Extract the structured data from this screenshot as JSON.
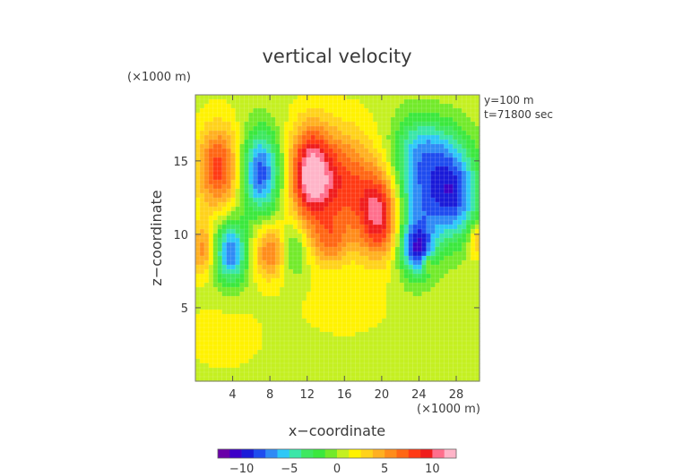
{
  "chart_data": {
    "type": "heatmap",
    "title": "vertical velocity",
    "xlabel": "x−coordinate",
    "ylabel": "z−coordinate",
    "x_unit": "(×1000 m)",
    "y_unit": "(×1000 m)",
    "info_lines": [
      "y=100 m",
      "t=71800 sec"
    ],
    "xlim": [
      0,
      30.5
    ],
    "ylim": [
      0,
      19.5
    ],
    "x_ticks": [
      4,
      8,
      12,
      16,
      20,
      24,
      28
    ],
    "x_tick_labels": [
      "4",
      "8",
      "12",
      "16",
      "20",
      "24",
      "28"
    ],
    "y_ticks": [
      5,
      10,
      15
    ],
    "y_tick_labels": [
      "5",
      "10",
      "15"
    ],
    "grid": true,
    "background_value": 0.8,
    "features": [
      {
        "x": 2.5,
        "z": 14.5,
        "sx": 1.6,
        "sz": 2.0,
        "value": 7.5
      },
      {
        "x": 0.8,
        "z": 9.0,
        "sx": 1.0,
        "sz": 1.2,
        "value": 5.0
      },
      {
        "x": 3.8,
        "z": 8.8,
        "sx": 1.3,
        "sz": 1.5,
        "value": -8.5
      },
      {
        "x": 7.0,
        "z": 14.2,
        "sx": 1.5,
        "sz": 2.0,
        "value": -9.0
      },
      {
        "x": 8.0,
        "z": 8.8,
        "sx": 1.4,
        "sz": 1.3,
        "value": 5.5
      },
      {
        "x": 12.3,
        "z": 14.2,
        "sx": 1.5,
        "sz": 2.2,
        "value": 9.0
      },
      {
        "x": 15.5,
        "z": 13.5,
        "sx": 2.8,
        "sz": 2.5,
        "value": 7.0
      },
      {
        "x": 19.8,
        "z": 11.2,
        "sx": 1.6,
        "sz": 2.0,
        "value": 9.0
      },
      {
        "x": 10.5,
        "z": 9.0,
        "sx": 1.0,
        "sz": 1.3,
        "value": -3.5
      },
      {
        "x": 14.5,
        "z": 9.5,
        "sx": 1.5,
        "sz": 1.2,
        "value": 4.0
      },
      {
        "x": 27.5,
        "z": 12.8,
        "sx": 2.0,
        "sz": 2.2,
        "value": -10.0
      },
      {
        "x": 23.5,
        "z": 12.5,
        "sx": 1.8,
        "sz": 3.0,
        "value": -6.0
      },
      {
        "x": 23.8,
        "z": 9.0,
        "sx": 1.2,
        "sz": 1.2,
        "value": -8.0
      },
      {
        "x": 25.0,
        "z": 16.0,
        "sx": 2.5,
        "sz": 1.5,
        "value": -4.0
      },
      {
        "x": 30.2,
        "z": 9.5,
        "sx": 0.6,
        "sz": 0.8,
        "value": 4.0
      },
      {
        "x": 25.0,
        "z": 8.0,
        "sx": 0.4,
        "sz": 0.4,
        "value": 4.0
      },
      {
        "x": 16.0,
        "z": 5.0,
        "sx": 3.0,
        "sz": 1.2,
        "value": 1.5
      },
      {
        "x": 3.0,
        "z": 3.0,
        "sx": 3.0,
        "sz": 1.5,
        "value": 1.2
      }
    ],
    "colorbar": {
      "min": -12.5,
      "max": 12.5,
      "tick_values": [
        -10,
        -5,
        0,
        5,
        10
      ],
      "tick_labels": [
        "−10",
        "−5",
        "0",
        "5",
        "10"
      ],
      "colors": [
        "#6a00a8",
        "#3c00c8",
        "#1a1ad8",
        "#1f4cef",
        "#2f8af5",
        "#2ec8f7",
        "#3ae6a8",
        "#3ee860",
        "#3be83d",
        "#72ea2a",
        "#c4f020",
        "#fff200",
        "#ffd21a",
        "#ffb020",
        "#ff8c1a",
        "#ff6614",
        "#ff3a14",
        "#f01c1c",
        "#ff6e8c",
        "#ffb4c8"
      ]
    }
  }
}
